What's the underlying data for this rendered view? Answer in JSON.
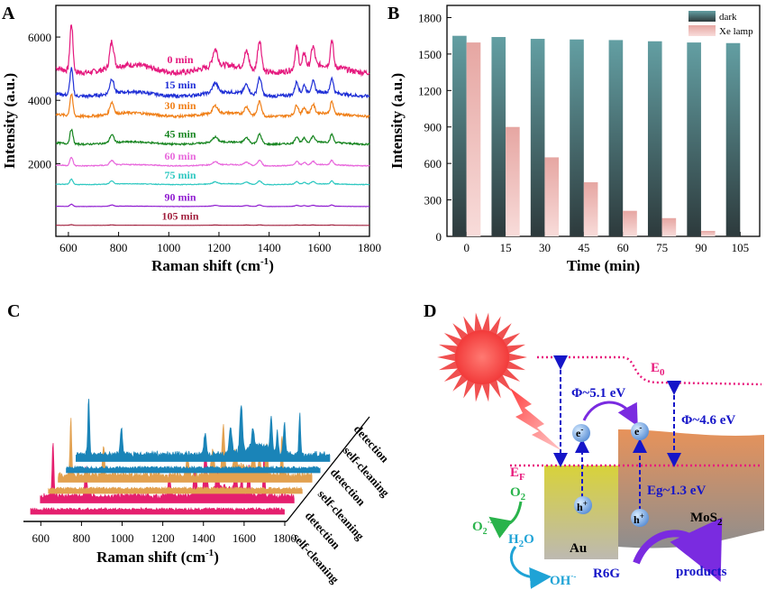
{
  "panels": {
    "A": "A",
    "B": "B",
    "C": "C",
    "D": "D"
  },
  "chart_data": [
    {
      "panel": "A",
      "type": "line",
      "xlabel": "Raman shift (cm",
      "xlabel_sup": "-1",
      "xlabel_end": ")",
      "ylabel": "Intensity (a.u.)",
      "xlim": [
        550,
        1800
      ],
      "ylim": [
        -300,
        7000
      ],
      "xticks": [
        600,
        800,
        1000,
        1200,
        1400,
        1600,
        1800
      ],
      "yticks": [
        2000,
        4000,
        6000
      ],
      "peaks": [
        [
          612,
          1.0,
          6
        ],
        [
          773,
          0.55,
          8
        ],
        [
          1185,
          0.35,
          10
        ],
        [
          1310,
          0.35,
          9
        ],
        [
          1362,
          0.65,
          8
        ],
        [
          1510,
          0.45,
          7
        ],
        [
          1540,
          0.3,
          6
        ],
        [
          1575,
          0.4,
          7
        ],
        [
          1650,
          0.55,
          6
        ]
      ],
      "series": [
        {
          "name": "0 min",
          "color": "#e5197e",
          "baseline": 5000,
          "scale": 1500
        },
        {
          "name": "15 min",
          "color": "#1f2fd6",
          "baseline": 4200,
          "scale": 850
        },
        {
          "name": "30 min",
          "color": "#f07f17",
          "baseline": 3550,
          "scale": 680
        },
        {
          "name": "45 min",
          "color": "#178520",
          "baseline": 2650,
          "scale": 460
        },
        {
          "name": "60 min",
          "color": "#e868dc",
          "baseline": 1950,
          "scale": 260
        },
        {
          "name": "75 min",
          "color": "#2ec8c1",
          "baseline": 1350,
          "scale": 170
        },
        {
          "name": "90 min",
          "color": "#8f1bd0",
          "baseline": 650,
          "scale": 70
        },
        {
          "name": "105 min",
          "color": "#a11f3d",
          "baseline": 50,
          "scale": 20
        }
      ]
    },
    {
      "panel": "B",
      "type": "bar",
      "xlabel": "Time (min)",
      "ylabel": "Intensity (a.u.)",
      "categories": [
        "0",
        "15",
        "30",
        "45",
        "60",
        "75",
        "90",
        "105"
      ],
      "ylim": [
        0,
        1900
      ],
      "yticks": [
        0,
        300,
        600,
        900,
        1200,
        1500,
        1800
      ],
      "series": [
        {
          "name": "dark",
          "values": [
            1650,
            1640,
            1625,
            1620,
            1615,
            1605,
            1595,
            1590
          ],
          "color_top": "#5f9ea2",
          "color_bottom": "#2f3b3d"
        },
        {
          "name": "Xe lamp",
          "values": [
            1595,
            900,
            650,
            445,
            210,
            150,
            45,
            0
          ],
          "color_top": "#e8a9a5",
          "color_bottom": "#f7dad8"
        }
      ],
      "legend_position": "top-right"
    },
    {
      "panel": "C",
      "type": "line",
      "xlabel": "Raman shift (cm",
      "xlabel_sup": "-1",
      "xlabel_end": ")",
      "xlim": [
        550,
        1800
      ],
      "xticks": [
        600,
        800,
        1000,
        1200,
        1400,
        1600,
        1800
      ],
      "depth_labels": [
        "detection",
        "self-cleaning",
        "detection",
        "self-cleaning",
        "detection",
        "self-cleaning"
      ],
      "series": [
        {
          "name": "self-cleaning",
          "color": "#e51f6e",
          "kind": "flat"
        },
        {
          "name": "detection",
          "color": "#e51f6e",
          "kind": "peaks"
        },
        {
          "name": "self-cleaning",
          "color": "#e2a150",
          "kind": "flat"
        },
        {
          "name": "detection",
          "color": "#e2a150",
          "kind": "peaks"
        },
        {
          "name": "self-cleaning",
          "color": "#1a84b8",
          "kind": "flat"
        },
        {
          "name": "detection",
          "color": "#1a84b8",
          "kind": "peaks"
        }
      ]
    }
  ],
  "diagram": {
    "e0": "E",
    "e0_sub": "0",
    "ef": "E",
    "ef_sub": "F",
    "phi_au": "Φ~5.1 eV",
    "phi_mos2": "Φ~4.6 eV",
    "eg": "Eg~1.3 eV",
    "electron": "e",
    "electron_sup": "-",
    "hole": "h",
    "hole_sup": "+",
    "au": "Au",
    "mos2": "MoS",
    "mos2_sub": "2",
    "o2": "O",
    "o2_sub": "2",
    "o2_rad": "O",
    "o2_rad_sub": "2",
    "o2_rad_sup": "·-",
    "h2o": "H",
    "h2o_sub": "2",
    "h2o_end": "O",
    "oh": "OH",
    "oh_sup": "·-",
    "r6g": "R6G",
    "products": "products"
  }
}
